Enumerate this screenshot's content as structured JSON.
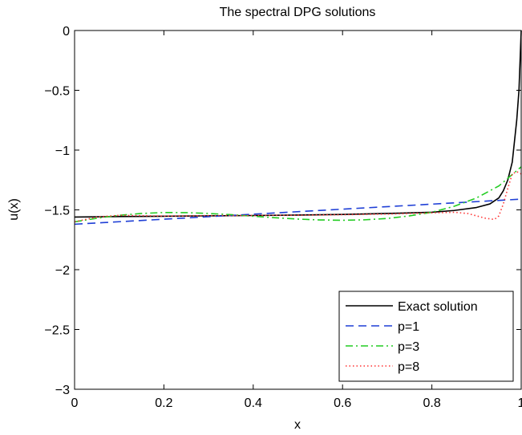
{
  "chart_data": {
    "type": "line",
    "title": "The spectral DPG solutions",
    "xlabel": "x",
    "ylabel": "u(x)",
    "xlim": [
      0,
      1
    ],
    "ylim": [
      -3,
      0
    ],
    "xticks": [
      0,
      0.2,
      0.4,
      0.6,
      0.8,
      1
    ],
    "xtick_labels": [
      "0",
      "0.2",
      "0.4",
      "0.6",
      "0.8",
      "1"
    ],
    "yticks": [
      0,
      -0.5,
      -1,
      -1.5,
      -2,
      -2.5,
      -3
    ],
    "ytick_labels": [
      "0",
      "−0.5",
      "−1",
      "−1.5",
      "−2",
      "−2.5",
      "−3"
    ],
    "grid": false,
    "legend_position": "bottom-right",
    "series": [
      {
        "name": "Exact solution",
        "color": "#000000",
        "style": "solid",
        "x": [
          0,
          0.1,
          0.2,
          0.3,
          0.4,
          0.5,
          0.6,
          0.7,
          0.8,
          0.85,
          0.9,
          0.93,
          0.95,
          0.96,
          0.97,
          0.98,
          0.99,
          0.995,
          1.0
        ],
        "y": [
          -1.56,
          -1.556,
          -1.553,
          -1.55,
          -1.547,
          -1.543,
          -1.538,
          -1.53,
          -1.52,
          -1.505,
          -1.48,
          -1.45,
          -1.4,
          -1.34,
          -1.25,
          -1.1,
          -0.75,
          -0.5,
          0.0
        ]
      },
      {
        "name": "p=1",
        "color": "#1f3fd6",
        "style": "dashed",
        "x": [
          0,
          1
        ],
        "y": [
          -1.62,
          -1.41
        ]
      },
      {
        "name": "p=3",
        "color": "#22cc22",
        "style": "dashdot",
        "x": [
          0,
          0.05,
          0.1,
          0.15,
          0.2,
          0.25,
          0.3,
          0.35,
          0.4,
          0.45,
          0.5,
          0.55,
          0.6,
          0.65,
          0.7,
          0.75,
          0.8,
          0.85,
          0.9,
          0.95,
          1.0
        ],
        "y": [
          -1.6,
          -1.57,
          -1.545,
          -1.53,
          -1.522,
          -1.523,
          -1.53,
          -1.54,
          -1.553,
          -1.566,
          -1.577,
          -1.584,
          -1.587,
          -1.583,
          -1.572,
          -1.55,
          -1.52,
          -1.47,
          -1.4,
          -1.3,
          -1.14
        ]
      },
      {
        "name": "p=8",
        "color": "#ff3333",
        "style": "dotted",
        "x": [
          0,
          0.05,
          0.1,
          0.2,
          0.3,
          0.4,
          0.5,
          0.6,
          0.7,
          0.8,
          0.85,
          0.88,
          0.9,
          0.92,
          0.94,
          0.95,
          0.96,
          0.97,
          0.98,
          0.99,
          1.0
        ],
        "y": [
          -1.6,
          -1.56,
          -1.545,
          -1.552,
          -1.548,
          -1.547,
          -1.545,
          -1.54,
          -1.535,
          -1.525,
          -1.52,
          -1.53,
          -1.55,
          -1.57,
          -1.58,
          -1.55,
          -1.45,
          -1.32,
          -1.2,
          -1.18,
          -1.2
        ]
      }
    ]
  }
}
